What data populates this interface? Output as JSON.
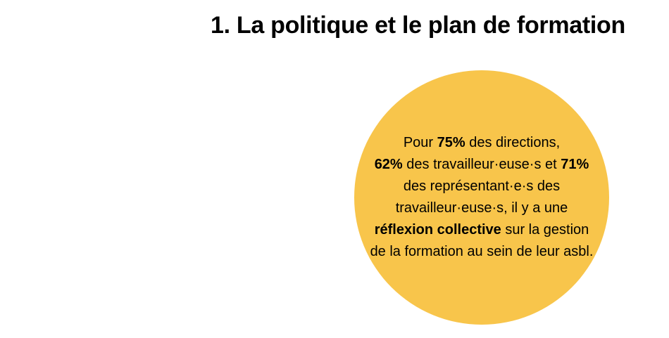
{
  "header": {
    "title": "1. La politique et le plan de formation"
  },
  "statement": {
    "part1": "Pour ",
    "stat_directions": "75%",
    "part2": " des directions,",
    "stat_workers": "62%",
    "part3": " des travailleur·euse·s et ",
    "stat_representatives": "71%",
    "part4": " des représentant·e·s des travailleur·euse·s, il y a une ",
    "highlight": "réflexion collective",
    "part5": " sur la gestion de la formation au sein de leur asbl."
  },
  "colors": {
    "circle_fill": "#f8c54b",
    "text": "#000000",
    "background": "#ffffff"
  }
}
